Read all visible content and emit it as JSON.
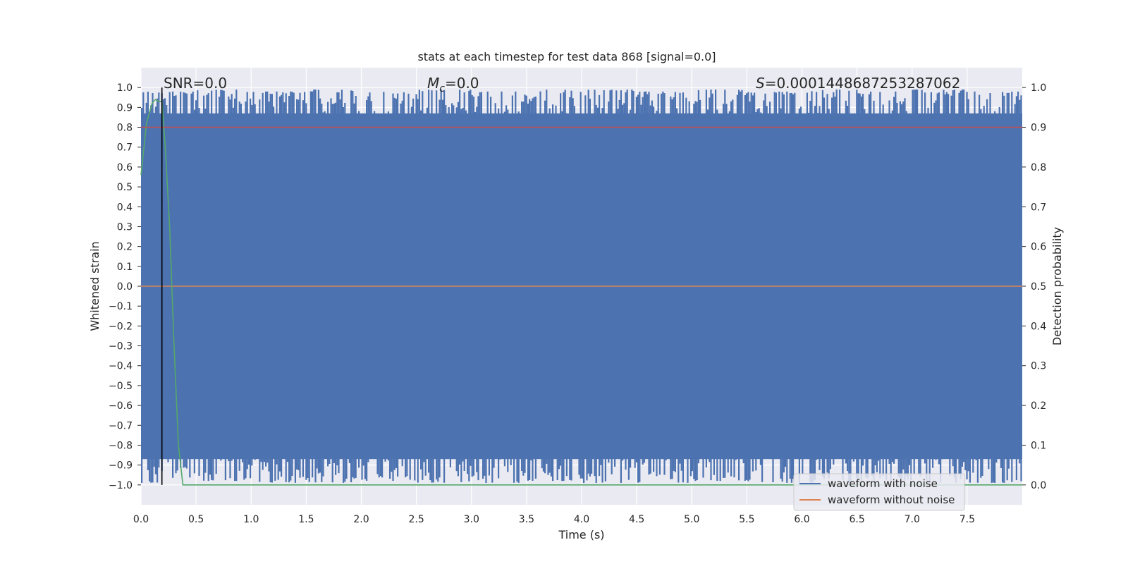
{
  "chart_data": {
    "type": "line",
    "title": "stats at each timestep for test data 868 [signal=0.0]",
    "xlabel": "Time (s)",
    "ylabel_left": "Whitened strain",
    "ylabel_right": "Detection probability",
    "xlim": [
      0.0,
      8.0
    ],
    "ylim_left": [
      -1.1,
      1.1
    ],
    "ylim_right": [
      -0.05,
      1.05
    ],
    "grid": true,
    "legend_position": "lower right",
    "x_ticks": [
      "0.0",
      "0.5",
      "1.0",
      "1.5",
      "2.0",
      "2.5",
      "3.0",
      "3.5",
      "4.0",
      "4.5",
      "5.0",
      "5.5",
      "6.0",
      "6.5",
      "7.0",
      "7.5"
    ],
    "y_ticks_left": [
      "1.0",
      "0.9",
      "0.8",
      "0.7",
      "0.6",
      "0.5",
      "0.4",
      "0.3",
      "0.2",
      "0.1",
      "0.0",
      "−0.1",
      "−0.2",
      "−0.3",
      "−0.4",
      "−0.5",
      "−0.6",
      "−0.7",
      "−0.8",
      "−0.9",
      "−1.0"
    ],
    "y_ticks_right": [
      "1.0",
      "0.9",
      "0.8",
      "0.7",
      "0.6",
      "0.5",
      "0.4",
      "0.3",
      "0.2",
      "0.1",
      "0.0"
    ],
    "annotations": {
      "snr": "SNR=0.0",
      "mc_symbol": "M",
      "mc_sub": "c",
      "mc_value": "=0.0",
      "s_symbol": "S",
      "s_value": "=0.0001448687253287062"
    },
    "vline_x": 0.19,
    "series": [
      {
        "name": "waveform with noise",
        "axis": "left",
        "color": "#4c72b0",
        "style": "dense noise band",
        "envelope_max": [
          0.98,
          0.99,
          0.98,
          0.99,
          0.98,
          0.99,
          0.98,
          0.99,
          0.99,
          0.98,
          0.99,
          0.98,
          0.99,
          0.98,
          0.99,
          0.98
        ],
        "envelope_min": [
          -0.99,
          -0.98,
          -0.99,
          -0.99,
          -0.98,
          -0.99,
          -0.99,
          -0.98,
          -0.99,
          -0.99,
          -0.98,
          -0.99,
          -0.99,
          -0.98,
          -0.99,
          -0.99
        ]
      },
      {
        "name": "waveform without noise",
        "axis": "left",
        "color": "#dd8452",
        "x": [
          0.0,
          8.0
        ],
        "y": [
          0.0,
          0.0
        ]
      },
      {
        "axis": "right",
        "color": "#55a868",
        "x": [
          0.0,
          0.05,
          0.1,
          0.13,
          0.16,
          0.19,
          0.22,
          0.26,
          0.3,
          0.34,
          0.38,
          0.42,
          8.0
        ],
        "y": [
          0.78,
          0.91,
          0.96,
          0.97,
          0.965,
          0.965,
          0.85,
          0.65,
          0.35,
          0.1,
          0.0,
          0.0,
          0.0
        ]
      },
      {
        "axis": "right",
        "color": "#c44e52",
        "x": [
          0.0,
          8.0
        ],
        "y": [
          0.9,
          0.9
        ]
      }
    ]
  },
  "legend": {
    "items": [
      {
        "label": "waveform with noise",
        "color": "#4c72b0"
      },
      {
        "label": "waveform without noise",
        "color": "#dd8452"
      }
    ]
  }
}
